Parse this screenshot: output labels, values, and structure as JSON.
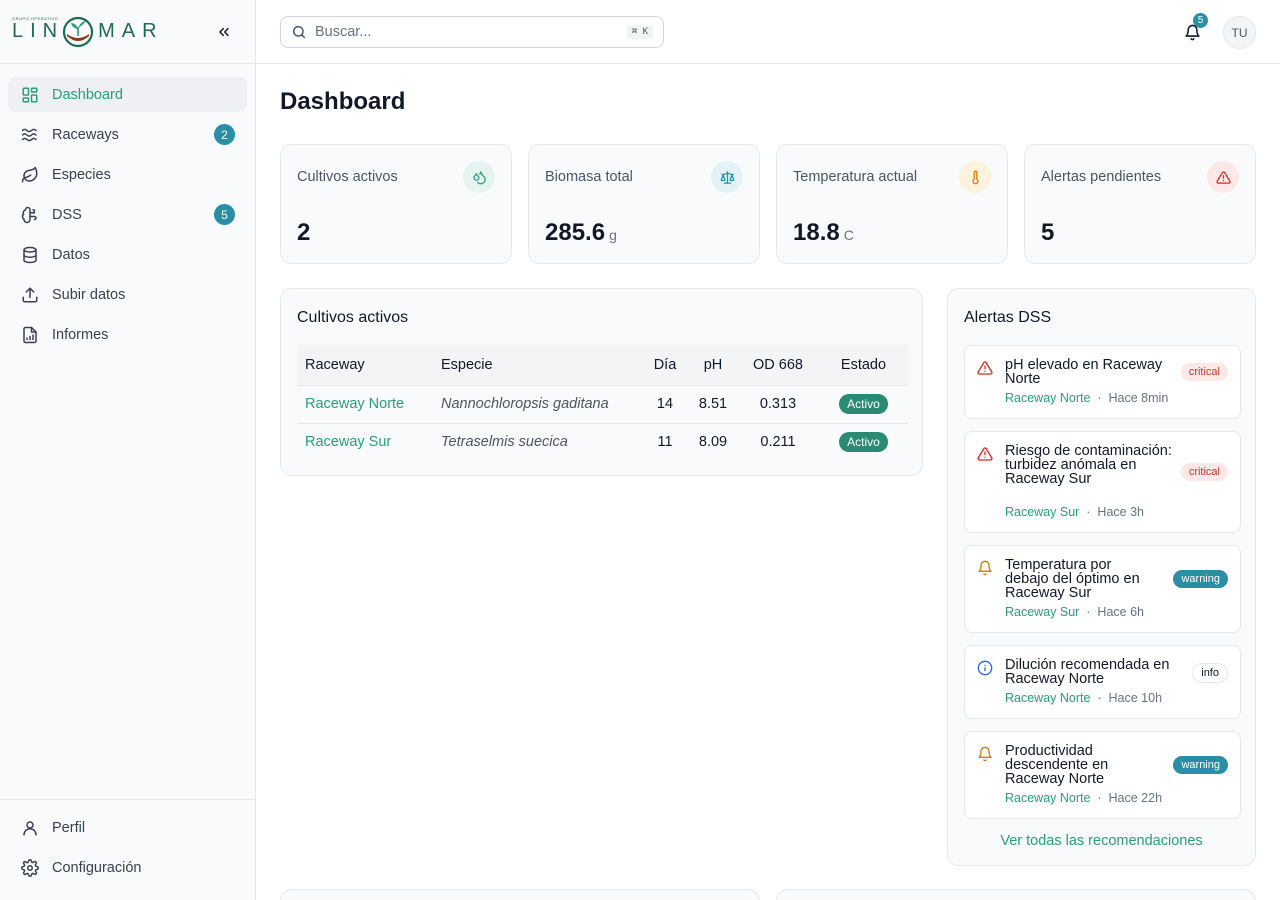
{
  "brand": {
    "tagline": "GRUPO OPERATIVO",
    "name_left": "LIN",
    "name_right": "MAR",
    "primary": "#2a9d7c",
    "badge": "#2a8ea5"
  },
  "sidebar": {
    "collapse_icon": "chevrons-left-icon",
    "items": [
      {
        "label": "Dashboard",
        "icon": "layout-dashboard-icon",
        "active": true
      },
      {
        "label": "Raceways",
        "icon": "waves-icon",
        "badge": "2"
      },
      {
        "label": "Especies",
        "icon": "leaf-icon"
      },
      {
        "label": "DSS",
        "icon": "brain-icon",
        "badge": "5"
      },
      {
        "label": "Datos",
        "icon": "database-icon"
      },
      {
        "label": "Subir datos",
        "icon": "upload-icon"
      },
      {
        "label": "Informes",
        "icon": "file-chart-icon"
      }
    ],
    "bottom_items": [
      {
        "label": "Perfil",
        "icon": "user-icon"
      },
      {
        "label": "Configuración",
        "icon": "settings-icon"
      }
    ]
  },
  "topbar": {
    "search_placeholder": "Buscar...",
    "shortcut": "⌘ K",
    "notifications_count": "5",
    "avatar_initials": "TU"
  },
  "page": {
    "title": "Dashboard"
  },
  "stats": [
    {
      "label": "Cultivos activos",
      "value": "2",
      "unit": "",
      "icon": "droplets-icon",
      "color": "#2a9d7c"
    },
    {
      "label": "Biomasa total",
      "value": "285.6",
      "unit": "g",
      "icon": "scale-icon",
      "color": "#2a8ea5"
    },
    {
      "label": "Temperatura actual",
      "value": "18.8",
      "unit": "C",
      "icon": "thermometer-icon",
      "color": "#d97706"
    },
    {
      "label": "Alertas pendientes",
      "value": "5",
      "unit": "",
      "icon": "alert-triangle-icon",
      "color": "#dc2626"
    }
  ],
  "cultivos": {
    "title": "Cultivos activos",
    "columns": [
      "Raceway",
      "Especie",
      "Día",
      "pH",
      "OD 668",
      "Estado"
    ],
    "rows": [
      {
        "raceway": "Raceway Norte",
        "especie": "Nannochloropsis gaditana",
        "dia": "14",
        "ph": "8.51",
        "od": "0.313",
        "estado": "Activo"
      },
      {
        "raceway": "Raceway Sur",
        "especie": "Tetraselmis suecica",
        "dia": "11",
        "ph": "8.09",
        "od": "0.211",
        "estado": "Activo"
      }
    ]
  },
  "alertas": {
    "title": "Alertas DSS",
    "items": [
      {
        "title": "pH elevado en Raceway Norte",
        "source": "Raceway Norte",
        "time": "Hace 8min",
        "severity": "critical",
        "icon": "alert-triangle-icon"
      },
      {
        "title": "Riesgo de contaminación: turbidez anómala en Raceway Sur",
        "source": "Raceway Sur",
        "time": "Hace 3h",
        "severity": "critical",
        "icon": "alert-triangle-icon"
      },
      {
        "title": "Temperatura por debajo del óptimo en Raceway Sur",
        "source": "Raceway Sur",
        "time": "Hace 6h",
        "severity": "warning",
        "icon": "bell-icon"
      },
      {
        "title": "Dilución recomendada en Raceway Norte",
        "source": "Raceway Norte",
        "time": "Hace 10h",
        "severity": "info",
        "icon": "info-icon"
      },
      {
        "title": "Productividad descendente en Raceway Norte",
        "source": "Raceway Norte",
        "time": "Hace 22h",
        "severity": "warning",
        "icon": "bell-icon"
      }
    ],
    "separator": "·",
    "see_all": "Ver todas las recomendaciones"
  }
}
